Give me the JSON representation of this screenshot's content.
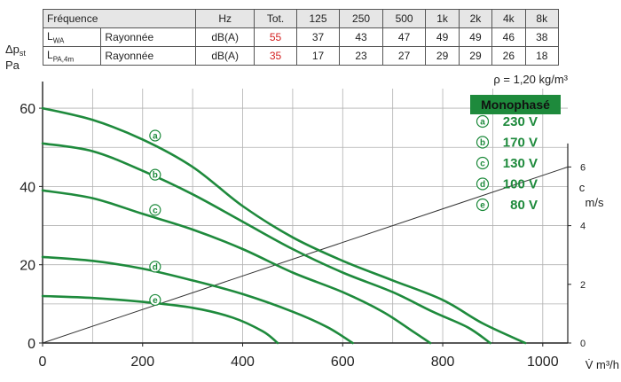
{
  "table": {
    "header": {
      "label": "Fréquence",
      "unit": "Hz",
      "total": "Tot.",
      "bands": [
        "125",
        "250",
        "500",
        "1k",
        "2k",
        "4k",
        "8k"
      ]
    },
    "rows": [
      {
        "symbol_main": "L",
        "symbol_sub": "WA",
        "desc": "Rayonnée",
        "unit": "dB(A)",
        "total": "55",
        "values": [
          "37",
          "43",
          "47",
          "49",
          "49",
          "46",
          "38"
        ]
      },
      {
        "symbol_main": "L",
        "symbol_sub": "PA,4m",
        "desc": "Rayonnée",
        "unit": "dB(A)",
        "total": "35",
        "values": [
          "17",
          "23",
          "27",
          "29",
          "29",
          "26",
          "18"
        ]
      }
    ],
    "total_color": "#d42020"
  },
  "chart_data": {
    "type": "line",
    "density_note": "ρ = 1,20 kg/m³",
    "xlabel": "V̇ m³/h",
    "ylabel_main": "Δp",
    "ylabel_sub": "st",
    "ylabel_unit": "Pa",
    "y2label_main": "c",
    "y2label_unit": "m/s",
    "xlim": [
      0,
      1050
    ],
    "ylim": [
      0,
      65
    ],
    "y2lim": [
      0,
      8.67
    ],
    "x_ticks": [
      0,
      200,
      400,
      600,
      800,
      1000
    ],
    "y_ticks": [
      0,
      20,
      40,
      60
    ],
    "y2_ticks": [
      0,
      2,
      4,
      6
    ],
    "grid": true,
    "legend": {
      "title": "Monophasé",
      "placement": "top-right",
      "entries": [
        {
          "marker": "a",
          "label": "230 V"
        },
        {
          "marker": "b",
          "label": "170 V"
        },
        {
          "marker": "c",
          "label": "130 V"
        },
        {
          "marker": "d",
          "label": "100 V"
        },
        {
          "marker": "e",
          "label": "80 V"
        }
      ]
    },
    "colors": {
      "curve": "#1e8a3c",
      "legend_bg": "#1e8a3c",
      "axis": "#222222",
      "grid": "#b0b0b0",
      "velocity": "#333333"
    },
    "series": [
      {
        "marker": "a",
        "label_at": [
          225,
          53
        ],
        "points": [
          [
            0,
            60
          ],
          [
            100,
            57
          ],
          [
            200,
            52
          ],
          [
            300,
            45
          ],
          [
            400,
            35
          ],
          [
            500,
            27
          ],
          [
            600,
            21
          ],
          [
            700,
            16
          ],
          [
            800,
            11
          ],
          [
            880,
            5
          ],
          [
            965,
            0
          ]
        ]
      },
      {
        "marker": "b",
        "label_at": [
          225,
          43
        ],
        "points": [
          [
            0,
            51
          ],
          [
            100,
            49
          ],
          [
            200,
            44
          ],
          [
            300,
            38
          ],
          [
            400,
            31
          ],
          [
            500,
            24
          ],
          [
            600,
            18
          ],
          [
            700,
            13
          ],
          [
            780,
            8
          ],
          [
            850,
            4
          ],
          [
            895,
            0
          ]
        ]
      },
      {
        "marker": "c",
        "label_at": [
          225,
          34
        ],
        "points": [
          [
            0,
            39
          ],
          [
            100,
            37
          ],
          [
            200,
            33
          ],
          [
            300,
            29
          ],
          [
            400,
            24
          ],
          [
            500,
            18
          ],
          [
            600,
            13
          ],
          [
            680,
            8
          ],
          [
            740,
            3
          ],
          [
            775,
            0
          ]
        ]
      },
      {
        "marker": "d",
        "label_at": [
          225,
          19.5
        ],
        "points": [
          [
            0,
            22
          ],
          [
            100,
            21
          ],
          [
            200,
            19
          ],
          [
            300,
            16
          ],
          [
            400,
            12.5
          ],
          [
            500,
            8
          ],
          [
            570,
            4
          ],
          [
            620,
            0
          ]
        ]
      },
      {
        "marker": "e",
        "label_at": [
          225,
          11
        ],
        "points": [
          [
            0,
            12
          ],
          [
            100,
            11.5
          ],
          [
            200,
            10.5
          ],
          [
            300,
            9
          ],
          [
            380,
            6.5
          ],
          [
            440,
            3
          ],
          [
            470,
            0
          ]
        ]
      }
    ],
    "velocity_line": {
      "points": [
        [
          0,
          0
        ],
        [
          1050,
          6
        ]
      ]
    }
  }
}
